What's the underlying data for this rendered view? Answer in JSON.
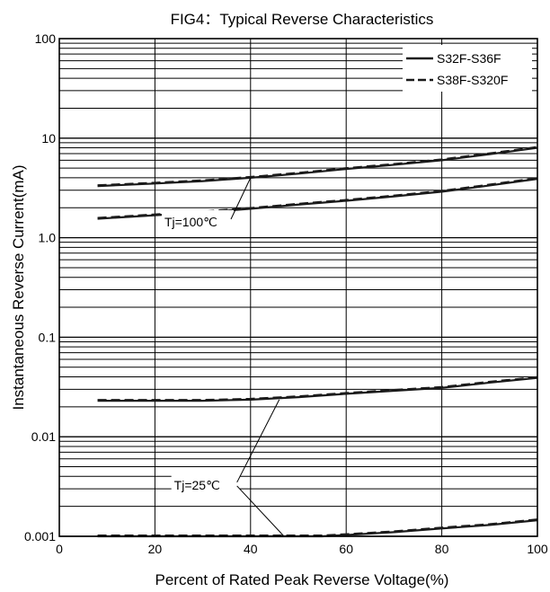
{
  "chart_data": {
    "type": "line",
    "title": "FIG4：Typical Reverse Characteristics",
    "xlabel": "Percent of Rated Peak Reverse Voltage(%)",
    "ylabel": "Instantaneous Reverse Current(mA)",
    "xlim": [
      0,
      100
    ],
    "ylim": [
      0.001,
      100
    ],
    "yscale": "log",
    "grid": true,
    "legend_position": "top-right",
    "x_ticks": [
      0,
      20,
      40,
      60,
      80,
      100
    ],
    "x_tick_labels": [
      "0",
      "20",
      "40",
      "60",
      "80",
      "100"
    ],
    "y_ticks": [
      0.001,
      0.01,
      0.1,
      1,
      10,
      100
    ],
    "y_tick_labels": [
      "0.001",
      "0.01",
      "0.1",
      "1.0",
      "10",
      "100"
    ],
    "legend": [
      {
        "label": "S32F-S36F",
        "style": "solid"
      },
      {
        "label": "S38F-S320F",
        "style": "dashed"
      }
    ],
    "series": [
      {
        "group": "Tj=100℃",
        "x": [
          8,
          20,
          30,
          40,
          50,
          60,
          70,
          80,
          90,
          100
        ],
        "y": [
          3.3,
          3.5,
          3.7,
          4.0,
          4.4,
          4.9,
          5.4,
          6.0,
          6.9,
          8.0
        ]
      },
      {
        "group": "Tj=100℃",
        "x": [
          8,
          20,
          30,
          40,
          50,
          60,
          70,
          80,
          90,
          100
        ],
        "y": [
          1.55,
          1.68,
          1.8,
          1.95,
          2.15,
          2.35,
          2.6,
          2.9,
          3.35,
          3.9
        ]
      },
      {
        "group": "Tj=25℃",
        "x": [
          8,
          20,
          30,
          40,
          50,
          60,
          70,
          80,
          90,
          100
        ],
        "y": [
          0.023,
          0.023,
          0.023,
          0.0236,
          0.025,
          0.027,
          0.029,
          0.031,
          0.035,
          0.039
        ]
      },
      {
        "group": "Tj=25℃",
        "x": [
          8,
          20,
          30,
          40,
          50,
          55,
          60,
          70,
          80,
          90,
          100
        ],
        "y": [
          0.001,
          0.001,
          0.001,
          0.001,
          0.001,
          0.001,
          0.00103,
          0.0011,
          0.0012,
          0.0013,
          0.00145
        ]
      }
    ],
    "annotations": [
      {
        "text": "Tj=100℃",
        "points_to_series": [
          0,
          1
        ]
      },
      {
        "text": "Tj=25℃",
        "points_to_series": [
          2,
          3
        ]
      }
    ]
  },
  "colors": {
    "line": "#1a1a1a",
    "grid": "#000000",
    "background": "#ffffff"
  }
}
